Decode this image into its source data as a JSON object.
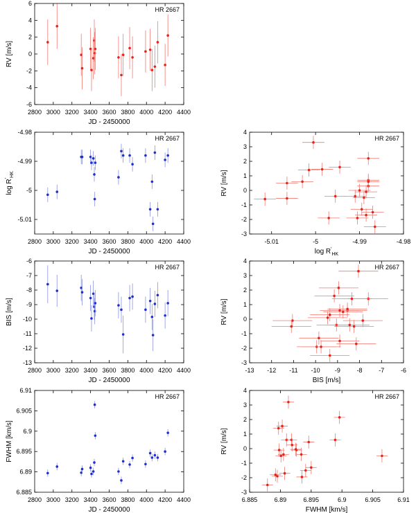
{
  "colors": {
    "red": "#e8231b",
    "blue": "#1f2fd0",
    "axis": "#000000",
    "errbar_red": "#f07a72",
    "errbar_blue": "#8a92dd"
  },
  "chart_data": [
    {
      "id": "rv-jd",
      "type": "scatter",
      "color": "red",
      "title": "HR 2667",
      "xlabel": "JD - 2450000",
      "ylabel": "RV [m/s]",
      "xlim": [
        2800,
        4400
      ],
      "ylim": [
        -6,
        6
      ],
      "xticks": [
        2800,
        3000,
        3200,
        3400,
        3600,
        3800,
        4000,
        4200,
        4400
      ],
      "xtick_labels": [
        "2800",
        "3000",
        "3200",
        "3400",
        "3600",
        "3800",
        "4000",
        "4200",
        "4400"
      ],
      "yticks": [
        -6,
        -4,
        -2,
        0,
        2,
        4,
        6
      ],
      "ytick_labels": [
        "-6",
        "-4",
        "-2",
        "0",
        "2",
        "4",
        "6"
      ],
      "points": [
        [
          2940,
          1.4,
          0,
          2.7
        ],
        [
          3040,
          3.3,
          0,
          2.7
        ],
        [
          3300,
          -0.1,
          0,
          2.5
        ],
        [
          3310,
          -1.7,
          0,
          2.5
        ],
        [
          3400,
          0.6,
          0,
          2.5
        ],
        [
          3410,
          -1.9,
          0,
          2.5
        ],
        [
          3430,
          -0.5,
          0,
          2.5
        ],
        [
          3440,
          1.6,
          0,
          2.5
        ],
        [
          3445,
          0.1,
          0,
          2.5
        ],
        [
          3450,
          0.6,
          0,
          2.5
        ],
        [
          3700,
          -0.4,
          0,
          2.5
        ],
        [
          3730,
          -2.5,
          0,
          2.5
        ],
        [
          3750,
          -0.1,
          0,
          2.5
        ],
        [
          3820,
          0.7,
          0,
          2.5
        ],
        [
          3850,
          -0.4,
          0,
          2.5
        ],
        [
          3990,
          0.3,
          0,
          2.5
        ],
        [
          4040,
          0.5,
          0,
          2.5
        ],
        [
          4060,
          -1.9,
          0,
          2.5
        ],
        [
          4090,
          -1.5,
          0,
          2.5
        ],
        [
          4120,
          1.4,
          0,
          2.5
        ],
        [
          4200,
          -1.3,
          0,
          2.5
        ],
        [
          4230,
          2.2,
          0,
          2.5
        ]
      ]
    },
    {
      "id": "rhk-jd",
      "type": "scatter",
      "color": "blue",
      "title": "HR 2667",
      "xlabel": "JD - 2450000",
      "ylabel": "log R'HK",
      "xlim": [
        2800,
        4400
      ],
      "ylim": [
        -5.015,
        -4.98
      ],
      "xticks": [
        2800,
        3000,
        3200,
        3400,
        3600,
        3800,
        4000,
        4200,
        4400
      ],
      "xtick_labels": [
        "2800",
        "3000",
        "3200",
        "3400",
        "3600",
        "3800",
        "4000",
        "4200",
        "4400"
      ],
      "yticks": [
        -5.01,
        -5,
        -4.99,
        -4.98
      ],
      "ytick_labels": [
        "-5.01",
        "-5",
        "-4.99",
        "-4.98"
      ],
      "points": [
        [
          2940,
          -5.0015,
          0,
          0.0025
        ],
        [
          3040,
          -5.0005,
          0,
          0.0025
        ],
        [
          3300,
          -4.9885,
          0,
          0.0025
        ],
        [
          3310,
          -4.9885,
          0,
          0.0025
        ],
        [
          3400,
          -4.9885,
          0,
          0.0025
        ],
        [
          3410,
          -4.9905,
          0,
          0.0025
        ],
        [
          3430,
          -4.989,
          0,
          0.0025
        ],
        [
          3440,
          -4.9945,
          0,
          0.0025
        ],
        [
          3445,
          -5.003,
          0,
          0.0025
        ],
        [
          3450,
          -4.9905,
          0,
          0.0025
        ],
        [
          3700,
          -4.9955,
          0,
          0.0025
        ],
        [
          3730,
          -4.9865,
          0,
          0.0025
        ],
        [
          3750,
          -4.988,
          0,
          0.0025
        ],
        [
          3820,
          -4.988,
          0,
          0.0025
        ],
        [
          3850,
          -4.991,
          0,
          0.0025
        ],
        [
          3990,
          -4.988,
          0,
          0.0025
        ],
        [
          4040,
          -5.0065,
          0,
          0.0025
        ],
        [
          4060,
          -4.997,
          0,
          0.0025
        ],
        [
          4070,
          -5.0115,
          0,
          0.0025
        ],
        [
          4090,
          -4.987,
          0,
          0.0025
        ],
        [
          4120,
          -5.0065,
          0,
          0.0025
        ],
        [
          4200,
          -4.9895,
          0,
          0.0025
        ],
        [
          4230,
          -4.988,
          0,
          0.0025
        ]
      ]
    },
    {
      "id": "bis-jd",
      "type": "scatter",
      "color": "blue",
      "title": "HR 2667",
      "xlabel": "JD - 2450000",
      "ylabel": "BIS [m/s]",
      "xlim": [
        2800,
        4400
      ],
      "ylim": [
        -13,
        -6
      ],
      "xticks": [
        2800,
        3000,
        3200,
        3400,
        3600,
        3800,
        4000,
        4200,
        4400
      ],
      "xtick_labels": [
        "2800",
        "3000",
        "3200",
        "3400",
        "3600",
        "3800",
        "4000",
        "4200",
        "4400"
      ],
      "yticks": [
        -13,
        -12,
        -11,
        -10,
        -9,
        -8,
        -7,
        -6
      ],
      "ytick_labels": [
        "-13",
        "-12",
        "-11",
        "-10",
        "-9",
        "-8",
        "-7",
        "-6"
      ],
      "points": [
        [
          2940,
          -7.6,
          0,
          1.3
        ],
        [
          3040,
          -8.05,
          0,
          1.1
        ],
        [
          3300,
          -7.85,
          0,
          0.9
        ],
        [
          3310,
          -8.15,
          0,
          0.9
        ],
        [
          3400,
          -8.55,
          0,
          0.9
        ],
        [
          3410,
          -9.95,
          0,
          0.9
        ],
        [
          3430,
          -8.25,
          0,
          0.9
        ],
        [
          3440,
          -9.15,
          0,
          0.9
        ],
        [
          3445,
          -9.45,
          0,
          0.9
        ],
        [
          3450,
          -8.9,
          0,
          0.9
        ],
        [
          3700,
          -9.05,
          0,
          0.9
        ],
        [
          3730,
          -9.35,
          0,
          0.9
        ],
        [
          3750,
          -11.05,
          0,
          1.3
        ],
        [
          3820,
          -8.55,
          0,
          0.9
        ],
        [
          3850,
          -8.45,
          0,
          0.9
        ],
        [
          3990,
          -9.35,
          0,
          0.9
        ],
        [
          4040,
          -8.75,
          0,
          0.9
        ],
        [
          4060,
          -9.85,
          0,
          0.9
        ],
        [
          4070,
          -11.1,
          0,
          1.1
        ],
        [
          4090,
          -8.95,
          0,
          0.9
        ],
        [
          4120,
          -8.35,
          0,
          0.9
        ],
        [
          4200,
          -9.75,
          0,
          0.9
        ],
        [
          4230,
          -8.9,
          0,
          0.9
        ]
      ]
    },
    {
      "id": "fwhm-jd",
      "type": "scatter",
      "color": "blue",
      "title": "HR 2667",
      "xlabel": "JD - 2450000",
      "ylabel": "FWHM [km/s]",
      "xlim": [
        2800,
        4400
      ],
      "ylim": [
        6.885,
        6.91
      ],
      "xticks": [
        2800,
        3000,
        3200,
        3400,
        3600,
        3800,
        4000,
        4200,
        4400
      ],
      "xtick_labels": [
        "2800",
        "3000",
        "3200",
        "3400",
        "3600",
        "3800",
        "4000",
        "4200",
        "4400"
      ],
      "yticks": [
        6.885,
        6.89,
        6.895,
        6.9,
        6.905,
        6.91
      ],
      "ytick_labels": [
        "6.885",
        "6.89",
        "6.895",
        "6.9",
        "6.905",
        "6.91"
      ],
      "points": [
        [
          2940,
          6.8897,
          0,
          0.0009
        ],
        [
          3040,
          6.8913,
          0,
          0.0009
        ],
        [
          3300,
          6.8898,
          0,
          0.0009
        ],
        [
          3310,
          6.8907,
          0,
          0.0009
        ],
        [
          3400,
          6.891,
          0,
          0.0009
        ],
        [
          3410,
          6.8895,
          0,
          0.0009
        ],
        [
          3430,
          6.8901,
          0,
          0.0009
        ],
        [
          3440,
          6.8923,
          0,
          0.0009
        ],
        [
          3445,
          6.9065,
          0,
          0.0009
        ],
        [
          3450,
          6.8989,
          0,
          0.0009
        ],
        [
          3700,
          6.8901,
          0,
          0.0009
        ],
        [
          3730,
          6.8879,
          0,
          0.0009
        ],
        [
          3750,
          6.8926,
          0,
          0.0009
        ],
        [
          3820,
          6.8918,
          0,
          0.0009
        ],
        [
          3850,
          6.8934,
          0,
          0.0009
        ],
        [
          3990,
          6.8919,
          0,
          0.0009
        ],
        [
          4040,
          6.8946,
          0,
          0.0009
        ],
        [
          4060,
          6.8935,
          0,
          0.0009
        ],
        [
          4090,
          6.8941,
          0,
          0.0009
        ],
        [
          4120,
          6.8935,
          0,
          0.0009
        ],
        [
          4200,
          6.895,
          0,
          0.0009
        ],
        [
          4230,
          6.8996,
          0,
          0.0009
        ]
      ]
    },
    {
      "id": "rv-rhk",
      "type": "scatter",
      "color": "red",
      "title": "HR 2667",
      "xlabel": "log R'HK",
      "ylabel": "RV [m/s]",
      "xlim": [
        -5.015,
        -4.98
      ],
      "ylim": [
        -3,
        4
      ],
      "xticks": [
        -5.01,
        -5,
        -4.99,
        -4.98
      ],
      "xtick_labels": [
        "-5.01",
        "-5",
        "-4.99",
        "-4.98"
      ],
      "yticks": [
        -3,
        -2,
        -1,
        0,
        1,
        2,
        3,
        4
      ],
      "ytick_labels": [
        "-3",
        "-2",
        "-1",
        "0",
        "1",
        "2",
        "3",
        "4"
      ],
      "points": [
        [
          -5.0015,
          1.4,
          0.0025,
          0.45
        ],
        [
          -5.0005,
          3.3,
          0.0025,
          0.45
        ],
        [
          -4.9885,
          -0.1,
          0.0025,
          0.45
        ],
        [
          -4.9905,
          -1.9,
          0.0025,
          0.45
        ],
        [
          -4.989,
          -0.5,
          0.0025,
          0.45
        ],
        [
          -4.9945,
          1.6,
          0.0025,
          0.45
        ],
        [
          -5.003,
          0.6,
          0.0025,
          0.45
        ],
        [
          -4.9955,
          -0.4,
          0.0025,
          0.45
        ],
        [
          -4.9865,
          -2.5,
          0.0025,
          0.45
        ],
        [
          -4.988,
          0.7,
          0.0025,
          0.45
        ],
        [
          -4.991,
          -0.4,
          0.0025,
          0.45
        ],
        [
          -5.0065,
          0.5,
          0.0025,
          0.45
        ],
        [
          -4.997,
          -1.9,
          0.0025,
          0.45
        ],
        [
          -4.987,
          -1.5,
          0.0025,
          0.45
        ],
        [
          -4.9895,
          -1.3,
          0.0025,
          0.45
        ],
        [
          -4.988,
          2.2,
          0.0025,
          0.45
        ],
        [
          -5.0115,
          -0.6,
          0.0025,
          0.45
        ],
        [
          -4.9885,
          -1.7,
          0.0025,
          0.45
        ],
        [
          -4.988,
          0.3,
          0.0025,
          0.45
        ],
        [
          -4.99,
          0.0,
          0.0025,
          0.45
        ],
        [
          -4.9985,
          1.45,
          0.0025,
          0.45
        ],
        [
          -5.0065,
          -0.55,
          0.0025,
          0.45
        ],
        [
          -4.988,
          0.6,
          0.0025,
          0.45
        ]
      ]
    },
    {
      "id": "rv-bis",
      "type": "scatter",
      "color": "red",
      "title": "HR 2667",
      "xlabel": "BIS [m/s]",
      "ylabel": "RV [m/s]",
      "xlim": [
        -13,
        -6
      ],
      "ylim": [
        -3,
        4
      ],
      "xticks": [
        -13,
        -12,
        -11,
        -10,
        -9,
        -8,
        -7,
        -6
      ],
      "xtick_labels": [
        "-13",
        "-12",
        "-11",
        "-10",
        "-9",
        "-8",
        "-7",
        "-6"
      ],
      "yticks": [
        -3,
        -2,
        -1,
        0,
        1,
        2,
        3,
        4
      ],
      "ytick_labels": [
        "-3",
        "-2",
        "-1",
        "0",
        "1",
        "2",
        "3",
        "4"
      ],
      "points": [
        [
          -7.6,
          1.4,
          0.9,
          0.45
        ],
        [
          -8.05,
          3.3,
          0.9,
          0.45
        ],
        [
          -7.85,
          -0.1,
          0.9,
          0.45
        ],
        [
          -8.15,
          -1.7,
          0.9,
          0.45
        ],
        [
          -8.55,
          0.6,
          0.9,
          0.45
        ],
        [
          -9.95,
          -1.9,
          0.9,
          0.45
        ],
        [
          -8.25,
          -0.5,
          0.9,
          0.45
        ],
        [
          -9.15,
          1.6,
          0.9,
          0.45
        ],
        [
          -9.45,
          0.1,
          0.9,
          0.45
        ],
        [
          -8.9,
          0.6,
          0.9,
          0.45
        ],
        [
          -9.05,
          -0.4,
          0.9,
          0.45
        ],
        [
          -9.35,
          -2.5,
          0.9,
          0.45
        ],
        [
          -11.05,
          -0.1,
          0.9,
          0.45
        ],
        [
          -8.55,
          0.7,
          0.9,
          0.45
        ],
        [
          -8.45,
          -0.4,
          0.9,
          0.45
        ],
        [
          -9.35,
          0.3,
          0.9,
          0.45
        ],
        [
          -8.75,
          0.5,
          0.9,
          0.45
        ],
        [
          -9.85,
          -1.3,
          0.9,
          0.45
        ],
        [
          -11.1,
          -0.5,
          0.9,
          0.45
        ],
        [
          -8.95,
          2.15,
          0.9,
          0.45
        ],
        [
          -8.35,
          1.4,
          0.9,
          0.45
        ],
        [
          -9.75,
          -1.9,
          0.9,
          0.45
        ],
        [
          -8.9,
          -1.5,
          0.9,
          0.45
        ]
      ]
    },
    {
      "id": "rv-fwhm",
      "type": "scatter",
      "color": "red",
      "title": "HR 2667",
      "xlabel": "FWHM [km/s]",
      "ylabel": "RV [m/s]",
      "xlim": [
        6.885,
        6.91
      ],
      "ylim": [
        -3,
        4
      ],
      "xticks": [
        6.885,
        6.89,
        6.895,
        6.9,
        6.905,
        6.91
      ],
      "xtick_labels": [
        "6.885",
        "6.89",
        "6.895",
        "6.9",
        "6.905",
        "6.91"
      ],
      "yticks": [
        -3,
        -2,
        -1,
        0,
        1,
        2,
        3,
        4
      ],
      "ytick_labels": [
        "-3",
        "-2",
        "-1",
        "0",
        "1",
        "2",
        "3",
        "4"
      ],
      "points": [
        [
          6.8897,
          1.4,
          0.0009,
          0.45
        ],
        [
          6.8913,
          3.2,
          0.0009,
          0.45
        ],
        [
          6.8898,
          -0.1,
          0.0009,
          0.45
        ],
        [
          6.8907,
          -1.7,
          0.0009,
          0.45
        ],
        [
          6.891,
          0.6,
          0.0009,
          0.45
        ],
        [
          6.8895,
          -1.9,
          0.0009,
          0.45
        ],
        [
          6.8901,
          -0.5,
          0.0009,
          0.45
        ],
        [
          6.8903,
          1.55,
          0.0009,
          0.45
        ],
        [
          6.9065,
          -0.5,
          0.0009,
          0.45
        ],
        [
          6.8989,
          0.6,
          0.0009,
          0.45
        ],
        [
          6.8905,
          -0.4,
          0.0009,
          0.45
        ],
        [
          6.8879,
          -2.5,
          0.0009,
          0.45
        ],
        [
          6.8926,
          -0.1,
          0.0009,
          0.45
        ],
        [
          6.8918,
          0.6,
          0.0009,
          0.45
        ],
        [
          6.8934,
          -0.4,
          0.0009,
          0.45
        ],
        [
          6.8919,
          0.25,
          0.0009,
          0.45
        ],
        [
          6.8946,
          0.45,
          0.0009,
          0.45
        ],
        [
          6.8935,
          -1.95,
          0.0009,
          0.45
        ],
        [
          6.8941,
          -1.5,
          0.0009,
          0.45
        ],
        [
          6.895,
          -1.3,
          0.0009,
          0.45
        ],
        [
          6.8996,
          2.15,
          0.0009,
          0.45
        ],
        [
          6.8892,
          -1.8,
          0.0009,
          0.45
        ],
        [
          6.8925,
          -0.05,
          0.0009,
          0.45
        ]
      ]
    }
  ]
}
